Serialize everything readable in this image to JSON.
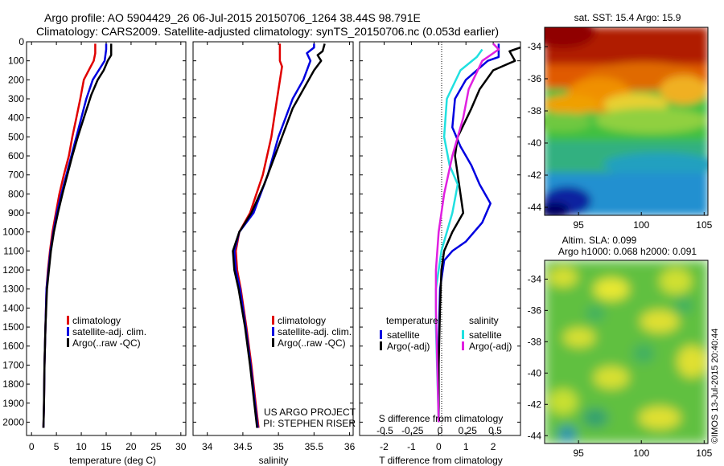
{
  "header": {
    "line1": "Argo profile: AO 5904429_26 06-Jul-2015 20150706_1264 38.44S 98.791E",
    "line2": "Climatology: CARS2009. Satellite-adjusted climatology: synTS_20150706.nc (0.053d earlier)"
  },
  "colors": {
    "climatology": "#e00000",
    "satellite": "#0000e0",
    "argo": "#000000",
    "sal_satellite": "#20e0e0",
    "sal_argo": "#e020e0"
  },
  "chart_data": [
    {
      "type": "line",
      "xlabel": "temperature (deg C)",
      "ylabel": "",
      "xlim": [
        -1,
        31
      ],
      "ylim": [
        2070,
        0
      ],
      "xticks": [
        0,
        5,
        10,
        15,
        20,
        25,
        30
      ],
      "yticks": [
        0,
        100,
        200,
        300,
        400,
        500,
        600,
        700,
        800,
        900,
        1000,
        1100,
        1200,
        1300,
        1400,
        1500,
        1600,
        1700,
        1800,
        1900,
        2000
      ],
      "legend": [
        "climatology",
        "satellite-adj. clim.",
        "Argo(..raw -QC)"
      ],
      "legend_position": "bottom-right",
      "series": [
        {
          "name": "climatology",
          "color": "#e00000",
          "points": [
            [
              12.8,
              10
            ],
            [
              12.8,
              60
            ],
            [
              12.5,
              100
            ],
            [
              11.5,
              150
            ],
            [
              10.5,
              200
            ],
            [
              9.8,
              300
            ],
            [
              9.0,
              400
            ],
            [
              8.2,
              500
            ],
            [
              7.5,
              600
            ],
            [
              6.5,
              700
            ],
            [
              5.6,
              800
            ],
            [
              4.9,
              900
            ],
            [
              4.2,
              1000
            ],
            [
              3.7,
              1100
            ],
            [
              3.3,
              1200
            ],
            [
              3.0,
              1300
            ],
            [
              2.8,
              1500
            ],
            [
              2.6,
              1700
            ],
            [
              2.5,
              1900
            ],
            [
              2.4,
              2030
            ]
          ]
        },
        {
          "name": "satellite-adj. clim.",
          "color": "#0000e0",
          "points": [
            [
              15.0,
              10
            ],
            [
              15.0,
              40
            ],
            [
              14.7,
              100
            ],
            [
              13.5,
              150
            ],
            [
              12.3,
              200
            ],
            [
              11.0,
              300
            ],
            [
              10.0,
              400
            ],
            [
              9.0,
              500
            ],
            [
              8.0,
              600
            ],
            [
              7.0,
              700
            ],
            [
              6.0,
              800
            ],
            [
              5.1,
              900
            ],
            [
              4.4,
              1000
            ],
            [
              3.8,
              1100
            ],
            [
              3.4,
              1200
            ],
            [
              3.0,
              1300
            ],
            [
              2.8,
              1500
            ],
            [
              2.6,
              1700
            ],
            [
              2.5,
              1900
            ],
            [
              2.4,
              2030
            ]
          ]
        },
        {
          "name": "Argo(..raw -QC)",
          "color": "#000000",
          "points": [
            [
              16.0,
              10
            ],
            [
              16.0,
              70
            ],
            [
              15.3,
              100
            ],
            [
              14.5,
              150
            ],
            [
              13.3,
              200
            ],
            [
              12.0,
              280
            ],
            [
              10.5,
              400
            ],
            [
              9.3,
              500
            ],
            [
              8.2,
              600
            ],
            [
              7.2,
              700
            ],
            [
              6.2,
              800
            ],
            [
              5.3,
              900
            ],
            [
              4.5,
              1000
            ],
            [
              3.9,
              1100
            ],
            [
              3.5,
              1200
            ],
            [
              3.1,
              1300
            ],
            [
              2.8,
              1500
            ],
            [
              2.6,
              1700
            ],
            [
              2.5,
              1900
            ],
            [
              2.4,
              2030
            ]
          ]
        }
      ]
    },
    {
      "type": "line",
      "xlabel": "salinity",
      "ylabel": "",
      "xlim": [
        33.8,
        36.05
      ],
      "ylim": [
        2070,
        0
      ],
      "xticks": [
        34,
        34.5,
        35,
        35.5,
        36
      ],
      "xtick_labels": [
        "34",
        "34.5",
        "35",
        "35.5",
        "36"
      ],
      "legend": [
        "climatology",
        "satellite-adj. clim.",
        "Argo(..raw -QC)"
      ],
      "legend_position": "bottom-right",
      "annotation_lines": [
        "US ARGO PROJECT",
        "PI: STEPHEN RISER"
      ],
      "series": [
        {
          "name": "climatology",
          "color": "#e00000",
          "points": [
            [
              35.02,
              10
            ],
            [
              35.02,
              100
            ],
            [
              35.05,
              130
            ],
            [
              34.98,
              300
            ],
            [
              34.9,
              500
            ],
            [
              34.78,
              700
            ],
            [
              34.6,
              900
            ],
            [
              34.45,
              1000
            ],
            [
              34.4,
              1100
            ],
            [
              34.42,
              1200
            ],
            [
              34.47,
              1300
            ],
            [
              34.55,
              1500
            ],
            [
              34.62,
              1700
            ],
            [
              34.68,
              1900
            ],
            [
              34.72,
              2030
            ]
          ]
        },
        {
          "name": "satellite-adj. clim.",
          "color": "#0000e0",
          "points": [
            [
              35.5,
              10
            ],
            [
              35.5,
              30
            ],
            [
              35.4,
              60
            ],
            [
              35.45,
              100
            ],
            [
              35.35,
              200
            ],
            [
              35.2,
              300
            ],
            [
              35.0,
              500
            ],
            [
              34.85,
              700
            ],
            [
              34.65,
              900
            ],
            [
              34.45,
              1000
            ],
            [
              34.38,
              1100
            ],
            [
              34.4,
              1200
            ],
            [
              34.46,
              1300
            ],
            [
              34.54,
              1500
            ],
            [
              34.61,
              1700
            ],
            [
              34.67,
              1900
            ],
            [
              34.71,
              2030
            ]
          ]
        },
        {
          "name": "Argo(..raw -QC)",
          "color": "#000000",
          "points": [
            [
              35.65,
              10
            ],
            [
              35.62,
              50
            ],
            [
              35.55,
              70
            ],
            [
              35.6,
              100
            ],
            [
              35.5,
              150
            ],
            [
              35.35,
              250
            ],
            [
              35.2,
              350
            ],
            [
              35.1,
              450
            ],
            [
              34.95,
              600
            ],
            [
              34.8,
              750
            ],
            [
              34.62,
              900
            ],
            [
              34.45,
              1000
            ],
            [
              34.36,
              1100
            ],
            [
              34.38,
              1200
            ],
            [
              34.44,
              1300
            ],
            [
              34.53,
              1500
            ],
            [
              34.6,
              1700
            ],
            [
              34.66,
              1900
            ],
            [
              34.7,
              2030
            ]
          ]
        }
      ]
    },
    {
      "type": "line",
      "xlabel": "T difference from climatology",
      "top_axis_label": "S difference from climatology",
      "xlim": [
        -2.9,
        3.0
      ],
      "ylim": [
        2070,
        0
      ],
      "xticks": [
        -2,
        -1,
        0,
        1,
        2
      ],
      "top_ticks": [
        -0.5,
        -0.25,
        0,
        0.25,
        0.5
      ],
      "top_tick_labels": [
        "-0.5",
        "-0.25",
        "0",
        "0.25",
        "0.5"
      ],
      "legend_titles": [
        "temperature",
        "salinity"
      ],
      "legend": [
        "satellite",
        "Argo(-adj)",
        "satellite",
        "Argo(-adj)"
      ],
      "series": [
        {
          "name": "satellite",
          "group": "temperature",
          "color": "#0000e0",
          "points": [
            [
              2.2,
              10
            ],
            [
              2.2,
              80
            ],
            [
              1.8,
              100
            ],
            [
              1.0,
              200
            ],
            [
              0.6,
              300
            ],
            [
              0.5,
              450
            ],
            [
              0.8,
              550
            ],
            [
              1.2,
              650
            ],
            [
              1.5,
              750
            ],
            [
              1.9,
              850
            ],
            [
              1.6,
              950
            ],
            [
              1.0,
              1050
            ],
            [
              0.5,
              1100
            ],
            [
              0.2,
              1150
            ],
            [
              0.05,
              1300
            ],
            [
              0.0,
              1600
            ],
            [
              0.0,
              2000
            ]
          ]
        },
        {
          "name": "Argo(-adj)",
          "group": "temperature",
          "color": "#000000",
          "points": [
            [
              3.0,
              30
            ],
            [
              2.6,
              50
            ],
            [
              2.8,
              100
            ],
            [
              2.0,
              150
            ],
            [
              1.5,
              250
            ],
            [
              1.2,
              350
            ],
            [
              0.7,
              500
            ],
            [
              0.6,
              600
            ],
            [
              0.7,
              700
            ],
            [
              0.8,
              800
            ],
            [
              0.9,
              900
            ],
            [
              0.5,
              1000
            ],
            [
              0.2,
              1100
            ],
            [
              0.1,
              1200
            ],
            [
              0.05,
              1400
            ],
            [
              0.0,
              1700
            ],
            [
              0.0,
              2000
            ]
          ]
        },
        {
          "name": "satellite",
          "group": "salinity",
          "color": "#20e0e0",
          "points": [
            [
              1.6,
              40
            ],
            [
              1.4,
              80
            ],
            [
              0.8,
              150
            ],
            [
              0.3,
              300
            ],
            [
              0.2,
              500
            ],
            [
              0.4,
              650
            ],
            [
              0.7,
              750
            ],
            [
              0.5,
              900
            ],
            [
              0.1,
              1100
            ],
            [
              -0.1,
              1300
            ],
            [
              -0.1,
              1500
            ],
            [
              0.0,
              2000
            ]
          ]
        },
        {
          "name": "Argo(-adj)",
          "group": "salinity",
          "color": "#e020e0",
          "points": [
            [
              2.0,
              10
            ],
            [
              2.2,
              40
            ],
            [
              1.9,
              70
            ],
            [
              1.6,
              100
            ],
            [
              1.1,
              250
            ],
            [
              0.9,
              400
            ],
            [
              0.5,
              600
            ],
            [
              0.2,
              800
            ],
            [
              0.0,
              1000
            ],
            [
              -0.1,
              1200
            ],
            [
              -0.1,
              1400
            ],
            [
              0.0,
              2000
            ]
          ]
        }
      ]
    },
    {
      "type": "heatmap",
      "title": "sat. SST: 15.4 Argo: 15.9",
      "xticks": [
        95,
        100,
        105
      ],
      "yticks": [
        -34,
        -36,
        -38,
        -40,
        -42,
        -44
      ],
      "xlim": [
        92.3,
        105.3
      ],
      "ylim": [
        -44.5,
        -32.8
      ]
    },
    {
      "type": "heatmap",
      "title_lines": [
        "Altim. SLA: 0.099",
        "Argo h1000: 0.068 h2000: 0.091"
      ],
      "xticks": [
        95,
        100,
        105
      ],
      "yticks": [
        -34,
        -36,
        -38,
        -40,
        -42,
        -44
      ],
      "xlim": [
        92.3,
        105.3
      ],
      "ylim": [
        -44.5,
        -32.8
      ]
    }
  ],
  "side_stamp": "©IMOS 13-Jul-2015 20:40:44"
}
